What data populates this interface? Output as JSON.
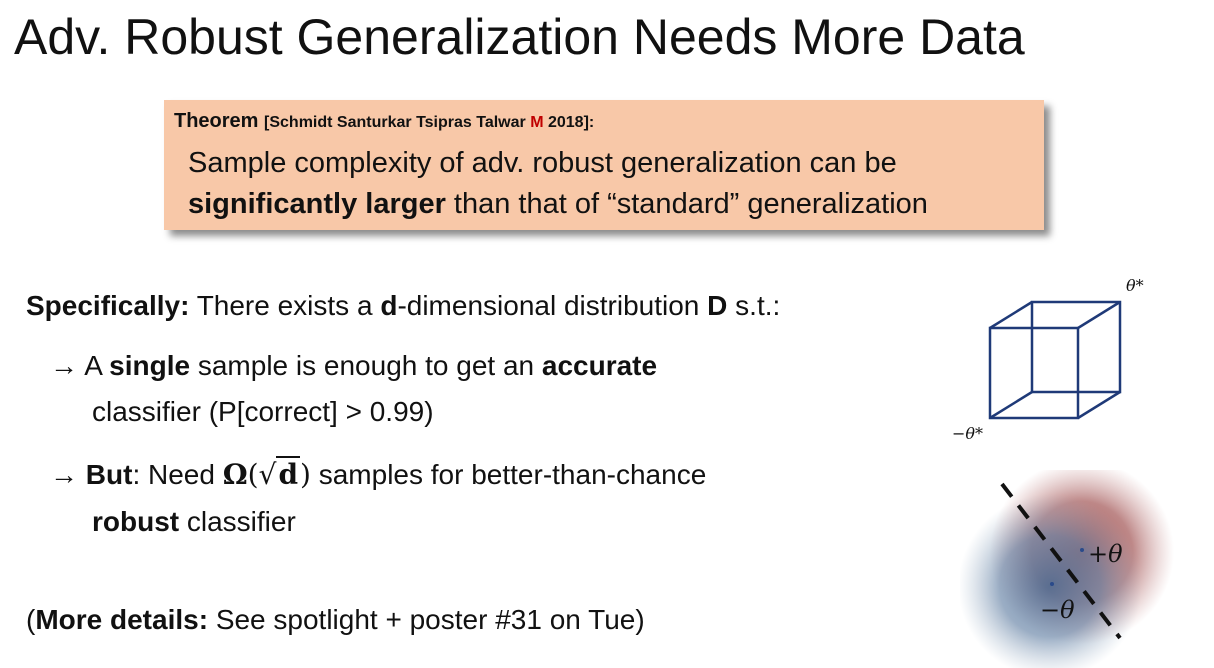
{
  "title": "Adv. Robust Generalization Needs More Data",
  "theorem": {
    "label": "Theorem",
    "citation_prefix": "[Schmidt Santurkar Tsipras Talwar",
    "citation_m": "M",
    "citation_suffix": "2018]:",
    "line1": "Sample complexity of adv. robust generalization can be",
    "line2_bold": "significantly  larger",
    "line2_rest": "than that of “standard” generalization"
  },
  "specifically": {
    "lead": "Specifically:",
    "t1": "There exists a",
    "d": "d",
    "t2": "-dimensional distribution",
    "D": "D",
    "t3": "s.t.:"
  },
  "bullet1": {
    "arrow": "→",
    "t1": "A",
    "single": "single",
    "t2": "sample is enough to get an",
    "accurate": "accurate",
    "line2": "classifier (P[correct] > 0.99)"
  },
  "bullet2": {
    "arrow": "→",
    "but": "But",
    "t1": ": Need",
    "omega": "Ω",
    "open": "(",
    "sqrt_sign": "√",
    "sqrt_arg": "d",
    "close": ")",
    "t2": "samples for better-than-chance",
    "robust": "robust",
    "t3": "classifier"
  },
  "more_details": {
    "open": "(",
    "bold": "More details:",
    "rest": "See spotlight + poster #31 on Tue)"
  },
  "cube_figure": {
    "top_label": "θ*",
    "bottom_label": "−θ*",
    "edge_color": "#1f3a78"
  },
  "gaussian_figure": {
    "plus_label": "+θ",
    "minus_label": "−θ",
    "red_blob_color": "#9a4a4a",
    "blue_blob_color": "#4a6a92",
    "point_color": "#2a4a8a"
  }
}
